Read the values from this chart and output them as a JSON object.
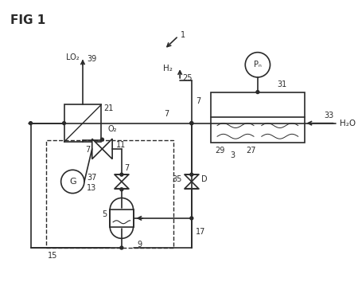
{
  "title": "FIG 1",
  "bg_color": "#ffffff",
  "line_color": "#2a2a2a",
  "fig_width": 4.5,
  "fig_height": 3.64,
  "dpi": 100,
  "labels": {
    "fig_title": "FIG 1",
    "LO2": "LO₂",
    "O2": "O₂",
    "H2": "H₂",
    "H2O": "H₂O",
    "PN": "Pₙ",
    "G": "G",
    "D": "D",
    "n1": "1",
    "n3": "3",
    "n5": "5",
    "n7a": "7",
    "n7b": "7",
    "n7c": "7",
    "n9": "9",
    "n11": "11",
    "n13": "13",
    "n15": "15",
    "n17": "17",
    "n21": "21",
    "n25": "25",
    "n27": "27",
    "n29": "29",
    "n31": "31",
    "n33": "33",
    "n35": "35",
    "n37": "37",
    "n39": "39"
  }
}
